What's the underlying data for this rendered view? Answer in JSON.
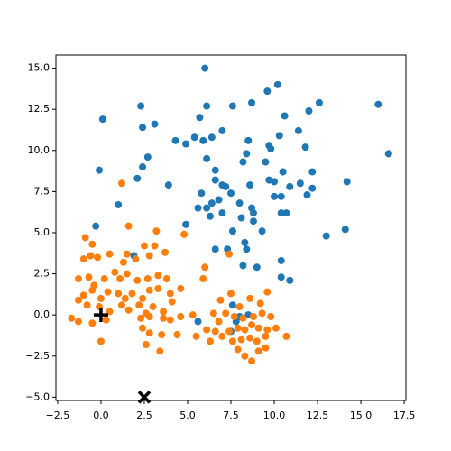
{
  "chart_data": {
    "type": "scatter",
    "xlim": [
      -2.6,
      17.6
    ],
    "ylim": [
      -5.2,
      15.8
    ],
    "xticks": [
      {
        "value": -2.5,
        "label": "−2.5"
      },
      {
        "value": 0,
        "label": "0.0"
      },
      {
        "value": 2.5,
        "label": "2.5"
      },
      {
        "value": 5,
        "label": "5.0"
      },
      {
        "value": 7.5,
        "label": "7.5"
      },
      {
        "value": 10,
        "label": "10.0"
      },
      {
        "value": 12.5,
        "label": "12.5"
      },
      {
        "value": 15,
        "label": "15.0"
      },
      {
        "value": 17.5,
        "label": "17.5"
      }
    ],
    "yticks": [
      {
        "value": -5,
        "label": "−5.0"
      },
      {
        "value": -2.5,
        "label": "−2.5"
      },
      {
        "value": 0,
        "label": "0.0"
      },
      {
        "value": 2.5,
        "label": "2.5"
      },
      {
        "value": 5,
        "label": "5.0"
      },
      {
        "value": 7.5,
        "label": "7.5"
      },
      {
        "value": 10,
        "label": "10.0"
      },
      {
        "value": 12.5,
        "label": "12.5"
      },
      {
        "value": 15,
        "label": "15.0"
      }
    ],
    "series": [
      {
        "color": "#1f77b4",
        "marker": "circle",
        "x": [
          6.0,
          10.2,
          9.6,
          2.3,
          6.1,
          7.6,
          8.7,
          12.6,
          16.0,
          0.1,
          2.4,
          3.1,
          5.7,
          10.6,
          12.0,
          11.4,
          4.3,
          4.9,
          5.4,
          5.9,
          6.4,
          7.0,
          8.5,
          9.7,
          9.8,
          10.3,
          11.8,
          16.6,
          2.7,
          2.4,
          -0.1,
          6.1,
          6.6,
          8.2,
          8.4,
          9.5,
          10.5,
          12.2,
          2.1,
          3.9,
          6.6,
          7.0,
          7.2,
          8.6,
          9.7,
          10.0,
          10.9,
          11.5,
          12.2,
          14.2,
          1.0,
          5.8,
          6.4,
          6.8,
          7.5,
          8.0,
          8.7,
          8.8,
          10.0,
          10.4,
          11.9,
          5.6,
          6.1,
          6.3,
          7.0,
          8.1,
          8.8,
          10.4,
          10.7,
          -0.3,
          4.9,
          7.6,
          9.3,
          13.0,
          14.1,
          6.6,
          7.3,
          8.3,
          8.4,
          10.4,
          1.9,
          8.2,
          9.0,
          10.4,
          10.9,
          8.0,
          7.8,
          8.5,
          7.6,
          7.5,
          5.6
        ],
        "values": [
          15.0,
          14.0,
          13.6,
          12.7,
          12.7,
          12.7,
          12.9,
          12.9,
          12.8,
          11.9,
          11.4,
          11.6,
          12.0,
          12.1,
          12.4,
          11.2,
          10.6,
          10.4,
          10.8,
          10.6,
          10.8,
          11.2,
          10.6,
          10.3,
          10.1,
          10.9,
          10.2,
          9.8,
          9.6,
          9.0,
          8.8,
          9.5,
          8.8,
          9.3,
          9.8,
          9.3,
          8.7,
          8.7,
          8.3,
          7.9,
          8.2,
          7.9,
          7.8,
          7.9,
          8.2,
          8.1,
          7.8,
          8.0,
          7.7,
          8.1,
          6.7,
          7.4,
          6.8,
          7.0,
          7.4,
          6.8,
          6.5,
          6.2,
          7.2,
          7.2,
          7.3,
          6.5,
          6.5,
          6.0,
          6.2,
          5.9,
          5.7,
          6.2,
          6.2,
          5.4,
          5.5,
          5.1,
          5.1,
          4.8,
          5.2,
          4.0,
          4.0,
          4.4,
          4.0,
          3.3,
          3.6,
          3.0,
          2.9,
          2.3,
          2.1,
          -0.1,
          -0.4,
          0.0,
          0.6,
          -1.0,
          -0.4
        ]
      },
      {
        "color": "#ff7f0e",
        "marker": "circle",
        "x": [
          1.2,
          1.6,
          4.8,
          3.2,
          -0.9,
          -0.5,
          -1.0,
          -0.6,
          -0.2,
          0.5,
          1.3,
          1.5,
          2.0,
          2.5,
          3.1,
          3.7,
          2.8,
          6.0,
          7.4,
          -1.3,
          -0.7,
          -0.4,
          0.2,
          0.8,
          1.1,
          1.5,
          2.1,
          2.7,
          3.3,
          3.8,
          -1.0,
          -0.5,
          0.0,
          0.4,
          1.0,
          1.4,
          1.8,
          2.4,
          2.8,
          3.3,
          4.0,
          4.6,
          -1.3,
          -0.8,
          -0.1,
          0.5,
          1.2,
          1.6,
          2.2,
          2.6,
          3.0,
          3.6,
          4.1,
          -1.7,
          -1.3,
          -0.5,
          0.3,
          2.3,
          2.8,
          3.6,
          4.0,
          4.6,
          5.3,
          5.9,
          6.9,
          7.5,
          8.0,
          8.6,
          9.2,
          9.6,
          6.5,
          6.8,
          7.2,
          7.7,
          8.2,
          8.8,
          9.3,
          9.8,
          6.1,
          6.6,
          7.0,
          7.4,
          7.9,
          8.3,
          8.7,
          9.1,
          9.6,
          10.1,
          10.7,
          6.3,
          7.6,
          8.1,
          8.6,
          9.0,
          9.5,
          7.9,
          8.3,
          8.7,
          9.1,
          9.5,
          2.4,
          2.8,
          3.5,
          4.4,
          2.6,
          3.4,
          0.0,
          5.5
        ],
        "values": [
          8.0,
          5.4,
          4.9,
          5.1,
          4.7,
          4.3,
          3.4,
          3.6,
          3.5,
          3.7,
          3.2,
          3.7,
          3.4,
          4.2,
          4.2,
          3.8,
          3.6,
          2.9,
          3.7,
          2.2,
          2.3,
          1.8,
          2.2,
          2.6,
          2.2,
          2.5,
          2.1,
          2.2,
          2.4,
          2.2,
          1.2,
          1.5,
          1.0,
          1.4,
          1.3,
          1.0,
          1.3,
          1.0,
          1.5,
          1.6,
          1.3,
          1.6,
          0.9,
          0.6,
          0.5,
          0.2,
          0.6,
          0.3,
          0.6,
          0.1,
          0.5,
          0.2,
          0.8,
          -0.2,
          -0.4,
          -0.5,
          -0.3,
          -0.2,
          -0.1,
          -0.2,
          -0.3,
          -0.1,
          0.0,
          2.2,
          0.9,
          1.3,
          0.5,
          1.0,
          0.7,
          1.4,
          0.1,
          -0.4,
          0.1,
          -0.1,
          -0.2,
          -0.1,
          0.1,
          -0.1,
          -0.9,
          -1.0,
          -1.3,
          -1.0,
          -0.8,
          -0.9,
          -0.6,
          -0.8,
          -0.9,
          -0.8,
          -1.3,
          -1.6,
          -1.6,
          -1.5,
          -1.4,
          -1.6,
          -1.3,
          -2.1,
          -2.5,
          -2.8,
          -2.2,
          -2.0,
          -0.8,
          -1.1,
          -1.2,
          -1.2,
          -1.8,
          -2.2,
          -1.6,
          -1.3
        ]
      },
      {
        "color": "#000000",
        "marker": "plus",
        "x": [
          0
        ],
        "values": [
          0
        ]
      },
      {
        "color": "#000000",
        "marker": "x",
        "x": [
          2.5
        ],
        "values": [
          -5
        ]
      }
    ]
  }
}
